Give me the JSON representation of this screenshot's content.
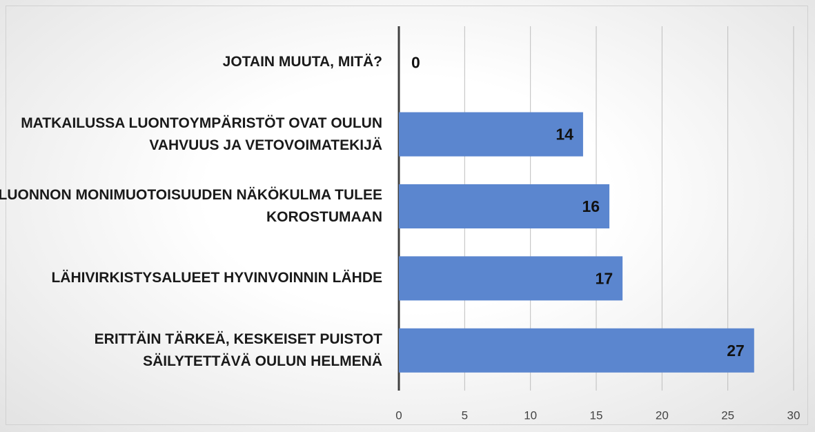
{
  "chart_data": {
    "type": "barh",
    "categories": [
      "JOTAIN MUUTA, MITÄ?",
      "MATKAILUSSA LUONTOYMPÄRISTÖT OVAT OULUN VAHVUUS JA VETOVOIMATEKIJÄ",
      "LUONNON MONIMUOTOISUUDEN NÄKÖKULMA TULEE KOROSTUMAAN",
      "LÄHIVIRKISTYSALUEET HYVINVOINNIN LÄHDE",
      "ERITTÄIN TÄRKEÄ, KESKEISET PUISTOT SÄILYTETTÄVÄ OULUN HELMENÄ"
    ],
    "values": [
      0,
      14,
      16,
      17,
      27
    ],
    "color": "#5b86cf",
    "xlim": [
      0,
      30
    ],
    "xticks": [
      0,
      5,
      10,
      15,
      20,
      25,
      30
    ],
    "grid": true
  }
}
